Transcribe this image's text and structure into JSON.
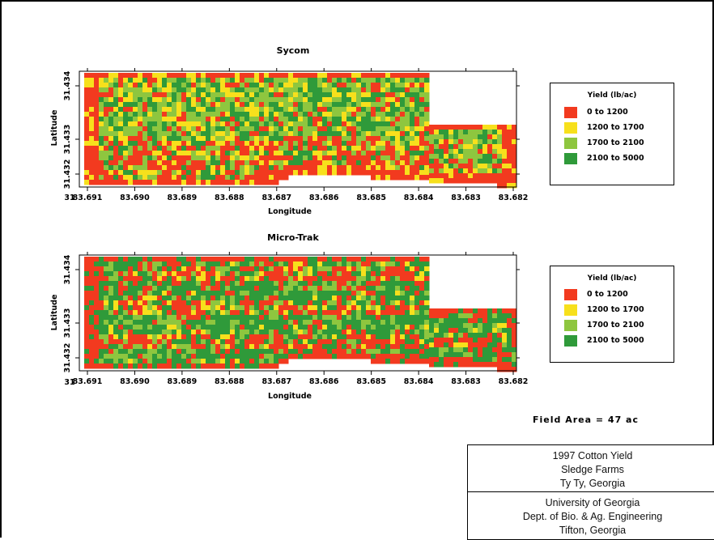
{
  "maps": [
    {
      "title": "Sycom",
      "lat_ticks": [
        "31.434",
        "31.433",
        "31.432"
      ],
      "lon_ticks": [
        "83.691",
        "83.690",
        "83.689",
        "83.688",
        "83.687",
        "83.686",
        "83.685",
        "83.684",
        "83.683",
        "83.682"
      ],
      "corner_tick": "31",
      "xlabel": "Longitude",
      "ylabel": "Latitude",
      "legend": {
        "title": "Yield (lb/ac)",
        "items": [
          {
            "label": "0 to 1200",
            "color": "#f23a1f"
          },
          {
            "label": "1200 to 1700",
            "color": "#f7e01c"
          },
          {
            "label": "1700 to 2100",
            "color": "#8ec63f"
          },
          {
            "label": "2100 to 5000",
            "color": "#2f9a3a"
          }
        ]
      }
    },
    {
      "title": "Micro-Trak",
      "lat_ticks": [
        "31.434",
        "31.433",
        "31.432"
      ],
      "lon_ticks": [
        "83.691",
        "83.690",
        "83.689",
        "83.688",
        "83.687",
        "83.686",
        "83.685",
        "83.684",
        "83.683",
        "83.682"
      ],
      "corner_tick": "31",
      "xlabel": "Longitude",
      "ylabel": "Latitude",
      "legend": {
        "title": "Yield (lb/ac)",
        "items": [
          {
            "label": "0 to 1200",
            "color": "#f23a1f"
          },
          {
            "label": "1200 to 1700",
            "color": "#f7e01c"
          },
          {
            "label": "1700 to 2100",
            "color": "#8ec63f"
          },
          {
            "label": "2100 to 5000",
            "color": "#2f9a3a"
          }
        ]
      }
    }
  ],
  "field_area": "Field Area = 47 ac",
  "title_block": {
    "lines_top": [
      "1997 Cotton Yield",
      "Sledge Farms",
      "Ty Ty, Georgia"
    ],
    "lines_bottom": [
      "University of Georgia",
      "Dept. of Bio. & Ag. Engineering",
      "Tifton, Georgia"
    ]
  }
}
